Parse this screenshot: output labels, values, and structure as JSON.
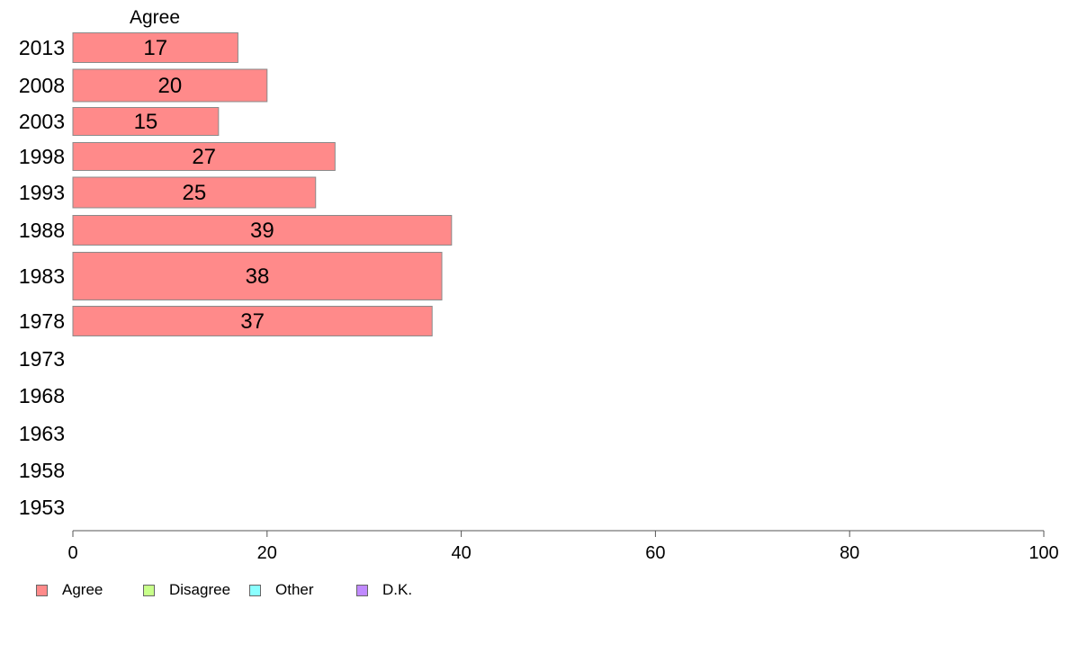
{
  "chart_data": {
    "type": "bar",
    "orientation": "horizontal",
    "series_label": "Agree",
    "categories": [
      "2013",
      "2008",
      "2003",
      "1998",
      "1993",
      "1988",
      "1983",
      "1978",
      "1973",
      "1968",
      "1963",
      "1958",
      "1953"
    ],
    "series": [
      {
        "name": "Agree",
        "color": "#ff8a8a",
        "values": [
          17,
          20,
          15,
          27,
          25,
          39,
          38,
          37,
          null,
          null,
          null,
          null,
          null
        ],
        "labels": [
          "17",
          "20",
          "15",
          "27",
          "25",
          "39",
          "38",
          "37",
          "",
          "",
          "",
          "",
          ""
        ]
      }
    ],
    "xlim": [
      0,
      100
    ],
    "xticks": [
      "0",
      "20",
      "40",
      "60",
      "80",
      "100"
    ],
    "grid": false,
    "legend": {
      "placement": "bottom-left",
      "items": [
        {
          "label": "Agree",
          "color": "#ff8a8a"
        },
        {
          "label": "Disagree",
          "color": "#c8ff8a"
        },
        {
          "label": "Other",
          "color": "#8affff"
        },
        {
          "label": "D.K.",
          "color": "#c08aff"
        }
      ]
    }
  }
}
